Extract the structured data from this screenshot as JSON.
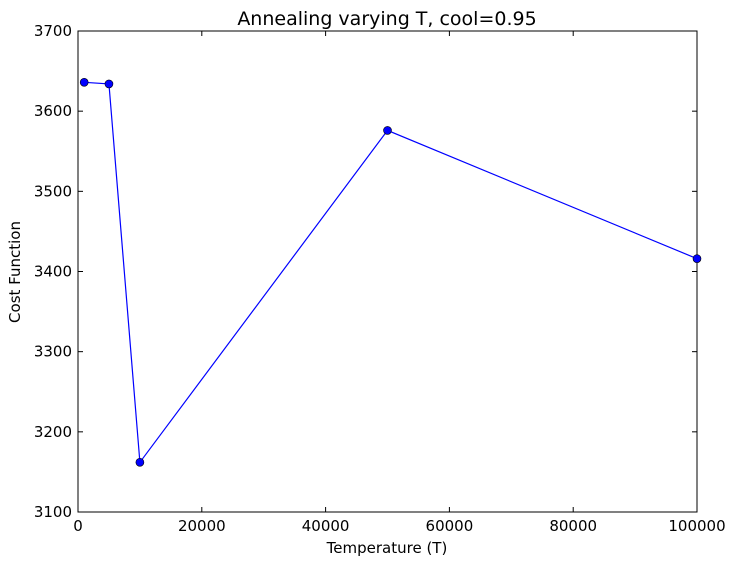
{
  "chart_data": {
    "type": "line",
    "title": "Annealing varying T, cool=0.95",
    "xlabel": "Temperature (T)",
    "ylabel": "Cost Function",
    "xlim": [
      0,
      100000
    ],
    "ylim": [
      3100,
      3700
    ],
    "xticks": [
      0,
      20000,
      40000,
      60000,
      80000,
      100000
    ],
    "yticks": [
      3100,
      3200,
      3300,
      3400,
      3500,
      3600,
      3700
    ],
    "grid": false,
    "series": [
      {
        "x": [
          1000,
          5000,
          10000,
          50000,
          100000
        ],
        "y": [
          3636,
          3634,
          3162,
          3576,
          3416
        ],
        "color": "#0000ff",
        "marker": "circle"
      }
    ]
  }
}
